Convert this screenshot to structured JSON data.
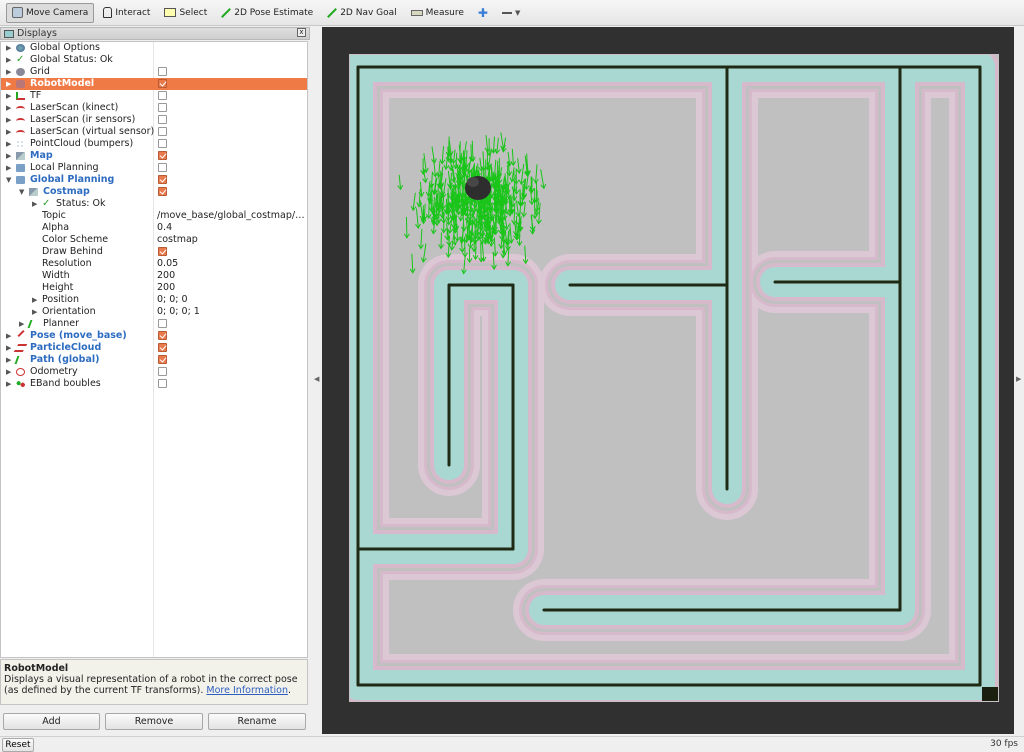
{
  "toolbar": {
    "tools": [
      {
        "label": "Move Camera",
        "icon": "camera-icon",
        "active": true
      },
      {
        "label": "Interact",
        "icon": "hand-icon"
      },
      {
        "label": "Select",
        "icon": "select-icon"
      },
      {
        "label": "2D Pose Estimate",
        "icon": "pose-arrow-icon"
      },
      {
        "label": "2D Nav Goal",
        "icon": "goal-arrow-icon"
      },
      {
        "label": "Measure",
        "icon": "ruler-icon"
      }
    ]
  },
  "panel": {
    "title": "Displays",
    "close_glyph": "x"
  },
  "tree": {
    "global_options": "Global Options",
    "global_status": "Global Status: Ok",
    "grid": "Grid",
    "robot_model": "RobotModel",
    "tf": "TF",
    "laser_kinect": "LaserScan (kinect)",
    "laser_ir": "LaserScan (ir sensors)",
    "laser_virtual": "LaserScan (virtual sensor)",
    "pointcloud": "PointCloud (bumpers)",
    "map": "Map",
    "local_planning": "Local Planning",
    "global_planning": "Global Planning",
    "costmap": "Costmap",
    "status_ok": "Status: Ok",
    "topic_label": "Topic",
    "topic_value": "/move_base/global_costmap/cos...",
    "alpha_label": "Alpha",
    "alpha_value": "0.4",
    "color_scheme_label": "Color Scheme",
    "color_scheme_value": "costmap",
    "draw_behind_label": "Draw Behind",
    "resolution_label": "Resolution",
    "resolution_value": "0.05",
    "width_label": "Width",
    "width_value": "200",
    "height_label": "Height",
    "height_value": "200",
    "position_label": "Position",
    "position_value": "0; 0; 0",
    "orientation_label": "Orientation",
    "orientation_value": "0; 0; 0; 1",
    "planner": "Planner",
    "pose_move_base": "Pose (move_base)",
    "particle_cloud": "ParticleCloud",
    "path_global": "Path (global)",
    "odometry": "Odometry",
    "eband": "EBand boubles"
  },
  "description": {
    "title": "RobotModel",
    "text": "Displays a visual representation of a robot in the correct pose (as defined by the current TF transforms).",
    "link": "More Information",
    "tail": "."
  },
  "buttons": {
    "add": "Add",
    "remove": "Remove",
    "rename": "Rename",
    "reset": "Reset"
  },
  "status": {
    "fps": "30 fps"
  },
  "colors": {
    "selected_row": "#f07a46",
    "checkbox_on": "#e87a4c",
    "link": "#2d5fc0",
    "particles": "#19c519",
    "walls": "#1f2a14",
    "inflation": "#a9d8d3",
    "cost_ring": "#d7b9cc",
    "free_space": "#c0c0c0"
  }
}
